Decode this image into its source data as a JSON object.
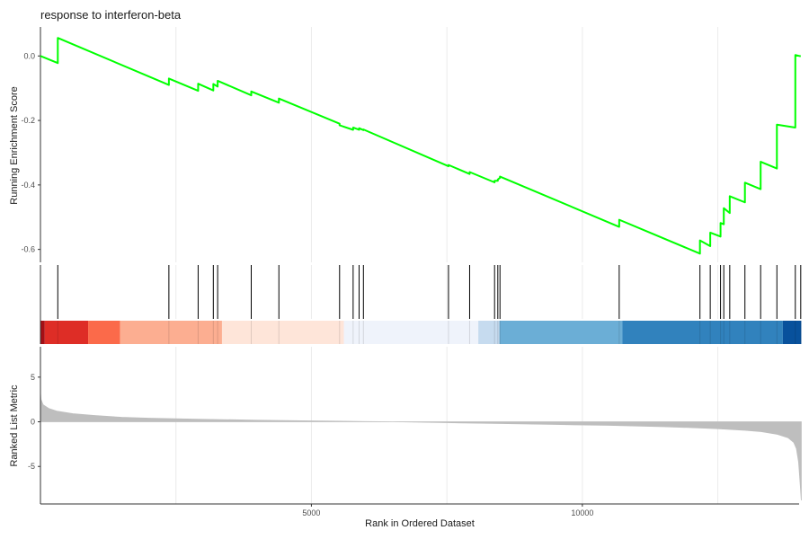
{
  "chart_data": {
    "type": "line",
    "title": "response to interferon-beta",
    "xlabel": "Rank in Ordered Dataset",
    "xlim": [
      0,
      14000
    ],
    "x_ticks": [
      5000,
      10000
    ],
    "x_tick_labels": [
      "5000",
      "10000"
    ],
    "grid": true,
    "running_score": {
      "ylabel": "Running Enrichment Score",
      "ylim": [
        -0.64,
        0.09
      ],
      "y_ticks": [
        0.0,
        -0.2,
        -0.4,
        -0.6
      ],
      "y_tick_labels": [
        "0.0",
        "-0.2",
        "-0.4",
        "-0.6"
      ],
      "line_color": "#00ff00",
      "x": [
        0,
        320,
        320,
        2370,
        2370,
        2910,
        2910,
        3190,
        3190,
        3270,
        3270,
        3890,
        3890,
        4400,
        4400,
        5520,
        5520,
        5770,
        5770,
        5880,
        5880,
        5960,
        5960,
        7530,
        7530,
        7920,
        7920,
        8380,
        8380,
        8440,
        8440,
        8480,
        8480,
        10680,
        10680,
        12170,
        12170,
        12360,
        12360,
        12550,
        12550,
        12610,
        12610,
        12720,
        12720,
        13000,
        13000,
        13290,
        13290,
        13590,
        13590,
        13930,
        13930,
        14030,
        14030
      ],
      "y": [
        0.0,
        -0.022,
        0.056,
        -0.09,
        -0.07,
        -0.108,
        -0.086,
        -0.107,
        -0.087,
        -0.095,
        -0.077,
        -0.122,
        -0.11,
        -0.145,
        -0.132,
        -0.21,
        -0.215,
        -0.229,
        -0.222,
        -0.229,
        -0.224,
        -0.23,
        -0.228,
        -0.342,
        -0.338,
        -0.366,
        -0.36,
        -0.392,
        -0.387,
        -0.387,
        -0.383,
        -0.378,
        -0.374,
        -0.53,
        -0.508,
        -0.613,
        -0.572,
        -0.59,
        -0.548,
        -0.56,
        -0.518,
        -0.522,
        -0.472,
        -0.487,
        -0.435,
        -0.454,
        -0.393,
        -0.413,
        -0.328,
        -0.349,
        -0.213,
        -0.222,
        0.003,
        -0.001,
        -0.001
      ]
    },
    "hits": [
      320,
      2370,
      2910,
      3190,
      3270,
      3890,
      4400,
      5520,
      5770,
      5880,
      5960,
      7530,
      7920,
      8380,
      8440,
      8480,
      10680,
      12170,
      12360,
      12550,
      12610,
      12720,
      13000,
      13290,
      13590,
      13930,
      14030
    ],
    "color_bands": [
      {
        "from": 0,
        "to": 80,
        "color": "#a50f15"
      },
      {
        "from": 80,
        "to": 880,
        "color": "#de2d26"
      },
      {
        "from": 880,
        "to": 1470,
        "color": "#fb6a4a"
      },
      {
        "from": 1470,
        "to": 3350,
        "color": "#fcae91"
      },
      {
        "from": 3350,
        "to": 5600,
        "color": "#fee5d9"
      },
      {
        "from": 5600,
        "to": 8080,
        "color": "#eff3fb"
      },
      {
        "from": 8080,
        "to": 8470,
        "color": "#c6dbef"
      },
      {
        "from": 8470,
        "to": 10740,
        "color": "#6baed6"
      },
      {
        "from": 10740,
        "to": 13700,
        "color": "#3182bd"
      },
      {
        "from": 13700,
        "to": 14040,
        "color": "#08519c"
      }
    ],
    "ranked_metric": {
      "ylabel": "Ranked List Metric",
      "ylim": [
        -9.2,
        8.4
      ],
      "y_ticks": [
        5,
        0,
        -5
      ],
      "y_tick_labels": [
        "5",
        "0",
        "-5"
      ],
      "fill_color": "#bebebe",
      "x": [
        0,
        10,
        50,
        150,
        300,
        600,
        1000,
        1500,
        2000,
        3000,
        4000,
        5000,
        6000,
        6500,
        6800,
        7500,
        8500,
        9500,
        10500,
        11500,
        12000,
        12500,
        13000,
        13300,
        13600,
        13800,
        13900,
        13950,
        13990,
        14020,
        14040
      ],
      "y": [
        3.3,
        2.5,
        1.9,
        1.5,
        1.2,
        0.9,
        0.7,
        0.5,
        0.4,
        0.28,
        0.18,
        0.1,
        0.03,
        0.0,
        -0.02,
        -0.1,
        -0.2,
        -0.3,
        -0.4,
        -0.55,
        -0.65,
        -0.78,
        -0.95,
        -1.1,
        -1.4,
        -1.8,
        -2.3,
        -3.0,
        -4.5,
        -7.0,
        -8.8
      ]
    }
  }
}
